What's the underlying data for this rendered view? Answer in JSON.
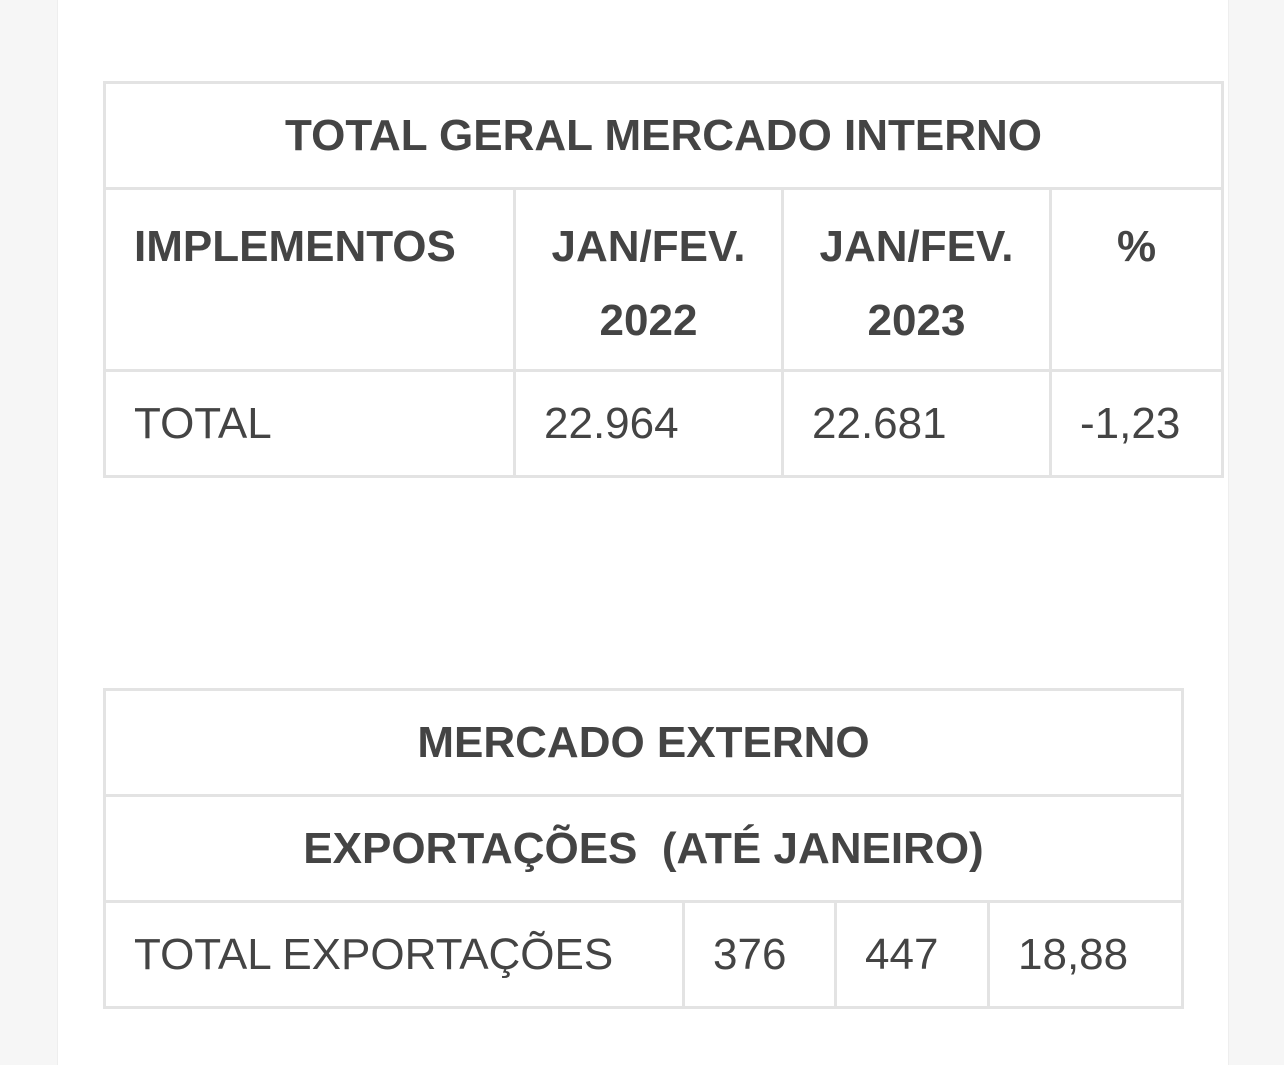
{
  "tables": [
    {
      "title": "TOTAL GERAL MERCADO INTERNO",
      "header": [
        "IMPLEMENTOS",
        "JAN/FEV. 2022",
        "JAN/FEV. 2023",
        "%"
      ],
      "rows": [
        [
          "TOTAL",
          "22.964",
          "22.681",
          "-1,23"
        ]
      ]
    },
    {
      "title": "MERCADO EXTERNO",
      "subtitle": "EXPORTAÇÕES  (ATÉ JANEIRO)",
      "rows": [
        [
          "TOTAL EXPORTAÇÕES",
          "376",
          "447",
          "18,88"
        ]
      ]
    }
  ]
}
